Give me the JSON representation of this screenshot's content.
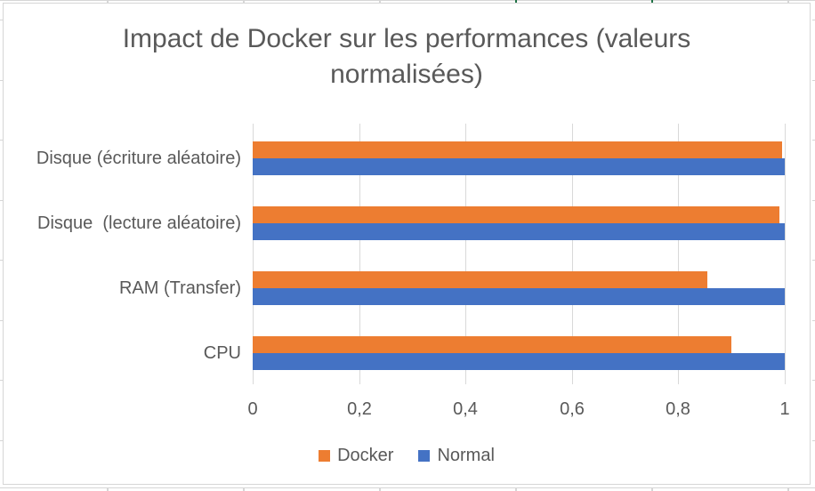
{
  "chart_data": {
    "type": "bar",
    "orientation": "horizontal",
    "title": "Impact de Docker sur les performances (valeurs normalisées)",
    "categories": [
      "CPU",
      "RAM (Transfer)",
      "Disque  (lecture aléatoire)",
      "Disque (écriture aléatoire)"
    ],
    "series": [
      {
        "name": "Docker",
        "color": "#ED7D31",
        "values": [
          0.9,
          0.855,
          0.99,
          0.995
        ]
      },
      {
        "name": "Normal",
        "color": "#4472C4",
        "values": [
          1.0,
          1.0,
          1.0,
          1.0
        ]
      }
    ],
    "xlim": [
      0,
      1
    ],
    "xticks": [
      0,
      0.2,
      0.4,
      0.6,
      0.8,
      1
    ],
    "xtick_labels": [
      "0",
      "0,2",
      "0,4",
      "0,6",
      "0,8",
      "1"
    ],
    "grid": true,
    "legend_position": "bottom"
  },
  "colors": {
    "text": "#595959",
    "gridline": "#d9d9d9",
    "sheet_line": "#d6d6d6",
    "sheet_accent": "#1e7245",
    "chart_border": "#d6d6d6",
    "background": "#ffffff"
  }
}
